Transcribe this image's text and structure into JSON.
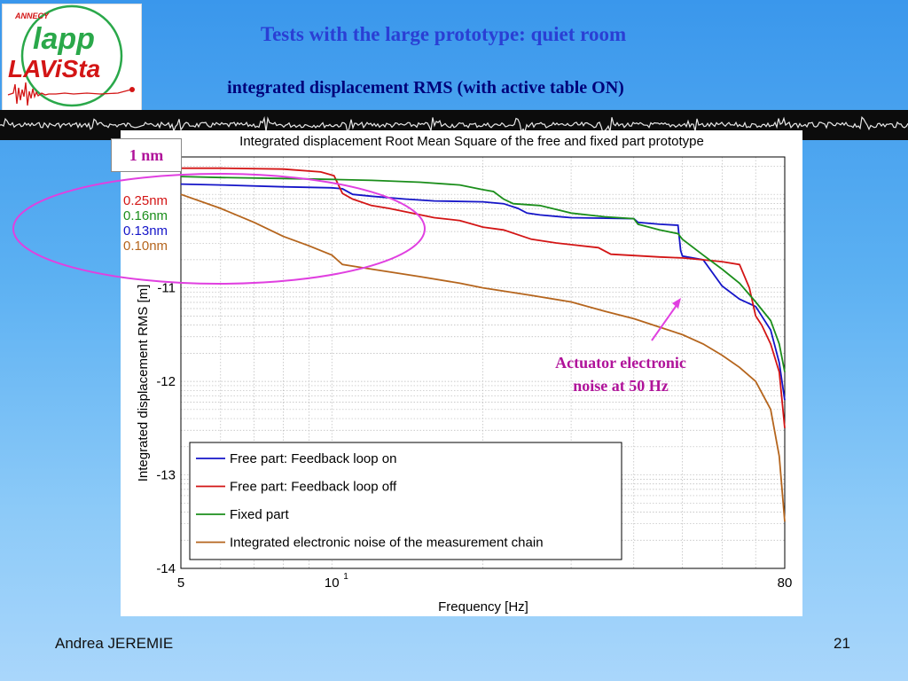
{
  "slide": {
    "title": "Tests with the large prototype: quiet room",
    "subtitle": "integrated displacement RMS (with active table ON)",
    "author": "Andrea JEREMIE",
    "page_number": "21"
  },
  "logo": {
    "top_text": "ANNECY",
    "line1": "lapp",
    "line2": "LAViSta"
  },
  "annotations": {
    "one_nm": "1 nm",
    "rms_labels": [
      {
        "text": "0.25nm",
        "color": "#d31515"
      },
      {
        "text": "0.16nm",
        "color": "#1b8e1b"
      },
      {
        "text": "0.13nm",
        "color": "#1515c8"
      },
      {
        "text": "0.10nm",
        "color": "#b5651d"
      }
    ],
    "actuator_line1": "Actuator electronic",
    "actuator_line2": "noise at 50 Hz",
    "highlight_color": "#e040e0"
  },
  "chart_data": {
    "type": "line",
    "title": "Integrated displacement Root Mean Square of the free and fixed part prototype",
    "xlabel": "Frequency [Hz]",
    "ylabel": "Integrated displacement RMS [m]",
    "x_scale": "log",
    "y_scale": "log",
    "xlim": [
      5,
      80
    ],
    "ylim": [
      -14,
      -9.6
    ],
    "x_tick_labels": [
      "5",
      "10",
      "80"
    ],
    "x_tick_superscript": "1",
    "y_tick_labels": [
      "-11",
      "-12",
      "-13",
      "-14"
    ],
    "grid": true,
    "legend_position": "bottom-left",
    "series": [
      {
        "name": "Free part: Feedback loop on",
        "color": "#1515c8",
        "points": [
          [
            5,
            -9.89
          ],
          [
            6,
            -9.9
          ],
          [
            8,
            -9.92
          ],
          [
            10,
            -9.93
          ],
          [
            10.5,
            -9.94
          ],
          [
            11,
            -10.0
          ],
          [
            12,
            -10.02
          ],
          [
            14,
            -10.05
          ],
          [
            16,
            -10.07
          ],
          [
            20,
            -10.08
          ],
          [
            22,
            -10.1
          ],
          [
            23.5,
            -10.15
          ],
          [
            24.5,
            -10.2
          ],
          [
            26,
            -10.22
          ],
          [
            30,
            -10.25
          ],
          [
            40,
            -10.26
          ],
          [
            40.8,
            -10.3
          ],
          [
            45,
            -10.32
          ],
          [
            49,
            -10.33
          ],
          [
            49.6,
            -10.6
          ],
          [
            50,
            -10.66
          ],
          [
            55,
            -10.7
          ],
          [
            60,
            -10.98
          ],
          [
            65,
            -11.12
          ],
          [
            70,
            -11.2
          ],
          [
            75,
            -11.45
          ],
          [
            78,
            -11.8
          ],
          [
            80,
            -12.2
          ]
        ]
      },
      {
        "name": "Free part: Feedback loop off",
        "color": "#d31515",
        "points": [
          [
            5,
            -9.72
          ],
          [
            6,
            -9.72
          ],
          [
            8,
            -9.73
          ],
          [
            9.5,
            -9.76
          ],
          [
            10.1,
            -9.8
          ],
          [
            10.5,
            -9.99
          ],
          [
            11,
            -10.05
          ],
          [
            12,
            -10.12
          ],
          [
            13,
            -10.15
          ],
          [
            16,
            -10.25
          ],
          [
            18,
            -10.28
          ],
          [
            20,
            -10.35
          ],
          [
            22,
            -10.38
          ],
          [
            25,
            -10.48
          ],
          [
            28,
            -10.52
          ],
          [
            34,
            -10.57
          ],
          [
            36,
            -10.64
          ],
          [
            45,
            -10.67
          ],
          [
            50,
            -10.68
          ],
          [
            55,
            -10.7
          ],
          [
            60,
            -10.72
          ],
          [
            65,
            -10.75
          ],
          [
            68,
            -11.0
          ],
          [
            70,
            -11.3
          ],
          [
            72,
            -11.4
          ],
          [
            75,
            -11.6
          ],
          [
            78,
            -11.9
          ],
          [
            80,
            -12.5
          ]
        ]
      },
      {
        "name": "Fixed part",
        "color": "#1b8e1b",
        "points": [
          [
            5,
            -9.81
          ],
          [
            6,
            -9.82
          ],
          [
            8,
            -9.83
          ],
          [
            10,
            -9.84
          ],
          [
            12,
            -9.85
          ],
          [
            15,
            -9.87
          ],
          [
            18,
            -9.9
          ],
          [
            20,
            -9.95
          ],
          [
            21,
            -9.97
          ],
          [
            22,
            -10.05
          ],
          [
            23,
            -10.1
          ],
          [
            26,
            -10.12
          ],
          [
            30,
            -10.2
          ],
          [
            35,
            -10.24
          ],
          [
            40,
            -10.26
          ],
          [
            40.8,
            -10.32
          ],
          [
            45,
            -10.38
          ],
          [
            49,
            -10.42
          ],
          [
            50,
            -10.48
          ],
          [
            55,
            -10.65
          ],
          [
            60,
            -10.8
          ],
          [
            65,
            -10.95
          ],
          [
            70,
            -11.15
          ],
          [
            75,
            -11.35
          ],
          [
            78,
            -11.6
          ],
          [
            80,
            -11.9
          ]
        ]
      },
      {
        "name": "Integrated electronic noise of the measurement chain",
        "color": "#b5651d",
        "points": [
          [
            5,
            -10.0
          ],
          [
            6,
            -10.15
          ],
          [
            7,
            -10.3
          ],
          [
            8,
            -10.45
          ],
          [
            9,
            -10.55
          ],
          [
            10,
            -10.65
          ],
          [
            10.5,
            -10.75
          ],
          [
            12,
            -10.8
          ],
          [
            15,
            -10.88
          ],
          [
            18,
            -10.95
          ],
          [
            20,
            -11.0
          ],
          [
            25,
            -11.08
          ],
          [
            30,
            -11.15
          ],
          [
            35,
            -11.25
          ],
          [
            40,
            -11.33
          ],
          [
            45,
            -11.42
          ],
          [
            50,
            -11.5
          ],
          [
            55,
            -11.6
          ],
          [
            60,
            -11.72
          ],
          [
            65,
            -11.85
          ],
          [
            70,
            -12.0
          ],
          [
            75,
            -12.3
          ],
          [
            78,
            -12.8
          ],
          [
            80,
            -13.5
          ]
        ]
      }
    ]
  }
}
